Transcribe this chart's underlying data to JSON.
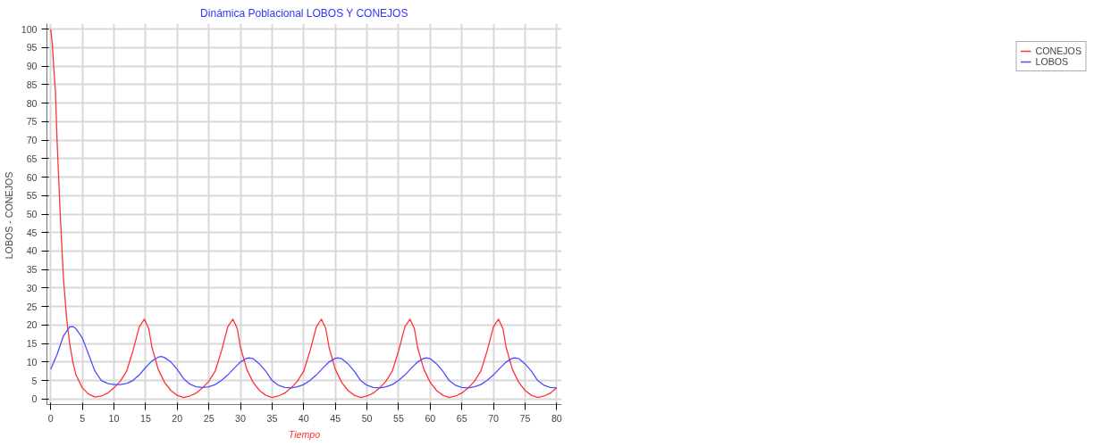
{
  "chart_data": {
    "type": "line",
    "title": "Dinámica Poblacional LOBOS Y CONEJOS",
    "xlabel": "Tiempo",
    "ylabel": "LOBOS  - CONEJOS",
    "xlim": [
      -0.6,
      80.8
    ],
    "ylim": [
      -1.5,
      101.5
    ],
    "xticks": [
      0,
      5,
      10,
      15,
      20,
      25,
      30,
      35,
      40,
      45,
      50,
      55,
      60,
      65,
      70,
      75,
      80
    ],
    "yticks": [
      0,
      5,
      10,
      15,
      20,
      25,
      30,
      35,
      40,
      45,
      50,
      55,
      60,
      65,
      70,
      75,
      80,
      85,
      90,
      95,
      100
    ],
    "grid": true,
    "legend": "top right",
    "marker": "none",
    "line_style": "solid",
    "series": [
      {
        "name": "CONEJOS",
        "color": "#ff3333",
        "x": [
          0,
          0.25,
          0.5,
          0.75,
          1,
          1.5,
          2,
          2.5,
          3,
          3.5,
          4,
          5,
          6,
          7,
          8,
          9,
          10,
          11,
          12,
          13,
          14,
          14.8,
          15.5,
          16,
          17,
          18,
          19,
          20,
          21,
          22,
          23,
          24,
          25,
          26,
          27,
          28,
          28.8,
          29.5,
          30,
          31,
          32,
          33,
          34,
          35,
          36,
          37,
          38,
          39,
          40,
          41,
          42,
          42.8,
          43.5,
          44,
          45,
          46,
          47,
          48,
          49,
          50,
          51,
          52,
          53,
          54,
          55,
          56,
          56.8,
          57.5,
          58,
          59,
          60,
          61,
          62,
          63,
          64,
          65,
          66,
          67,
          68,
          69,
          70,
          70.8,
          71.5,
          72,
          73,
          74,
          75,
          76,
          77,
          78,
          79,
          80
        ],
        "values": [
          100,
          96,
          89,
          83,
          70,
          50,
          33,
          22,
          15,
          10,
          6.5,
          3,
          1.3,
          0.5,
          0.8,
          1.6,
          3,
          4.8,
          7.5,
          13,
          19.5,
          21.6,
          19,
          14,
          8,
          4.5,
          2.3,
          1,
          0.4,
          0.8,
          1.6,
          3,
          4.8,
          7.5,
          13,
          19.5,
          21.6,
          19,
          14,
          8,
          4.5,
          2.3,
          1,
          0.4,
          0.8,
          1.6,
          3,
          4.8,
          7.5,
          13,
          19.5,
          21.6,
          19,
          14,
          8,
          4.5,
          2.3,
          1,
          0.4,
          0.8,
          1.6,
          3,
          4.8,
          7.5,
          13,
          19.5,
          21.6,
          19,
          14,
          8,
          4.5,
          2.3,
          1,
          0.4,
          0.8,
          1.6,
          3,
          4.8,
          7.5,
          13,
          19.5,
          21.6,
          19,
          14,
          8,
          4.5,
          2.3,
          1,
          0.4,
          0.8,
          1.6,
          3
        ]
      },
      {
        "name": "LOBOS",
        "color": "#4d4dff",
        "x": [
          0,
          1,
          2,
          3,
          3.5,
          4,
          5,
          6,
          7,
          8,
          9,
          10,
          11,
          12,
          13,
          14,
          15,
          16,
          17,
          17.5,
          18,
          19,
          20,
          21,
          22,
          23,
          24,
          25,
          26,
          27,
          28,
          29,
          30,
          31,
          31.5,
          32,
          33,
          34,
          35,
          36,
          37,
          38,
          39,
          40,
          41,
          42,
          43,
          44,
          45,
          45.5,
          46,
          47,
          48,
          49,
          50,
          51,
          52,
          53,
          54,
          55,
          56,
          57,
          58,
          59,
          59.5,
          60,
          61,
          62,
          63,
          64,
          65,
          66,
          67,
          68,
          69,
          70,
          71,
          72,
          73,
          73.5,
          74,
          75,
          76,
          77,
          78,
          79,
          80
        ],
        "values": [
          8,
          12,
          17,
          19.5,
          19.6,
          19,
          16.5,
          12,
          7.5,
          5,
          4.2,
          3.9,
          3.9,
          4.2,
          5,
          6.5,
          8.5,
          10.3,
          11.3,
          11.5,
          11.2,
          10,
          8,
          5.5,
          4,
          3.3,
          3.1,
          3.3,
          3.9,
          5,
          6.5,
          8.3,
          10,
          11,
          11.1,
          10.9,
          9.5,
          7.5,
          5,
          3.7,
          3.1,
          3,
          3.3,
          3.9,
          5,
          6.5,
          8.3,
          10,
          11,
          11.1,
          10.9,
          9.5,
          7.5,
          5,
          3.7,
          3.1,
          3,
          3.3,
          3.9,
          5,
          6.5,
          8.3,
          10,
          11,
          11.1,
          10.9,
          9.5,
          7.5,
          5,
          3.7,
          3.1,
          3,
          3.3,
          3.9,
          5,
          6.5,
          8.3,
          10,
          11,
          11.1,
          10.9,
          9.5,
          7.5,
          5,
          3.7,
          3.1,
          3
        ]
      }
    ]
  }
}
